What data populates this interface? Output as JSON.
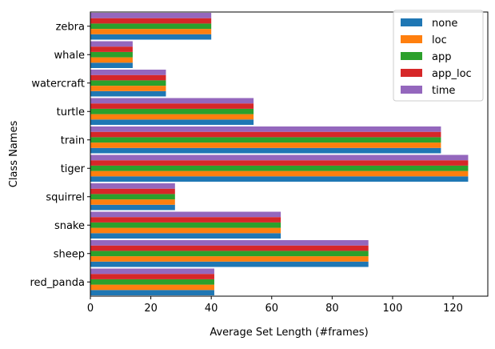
{
  "chart_data": {
    "type": "bar",
    "orientation": "horizontal",
    "categories": [
      "red_panda",
      "sheep",
      "snake",
      "squirrel",
      "tiger",
      "train",
      "turtle",
      "watercraft",
      "whale",
      "zebra"
    ],
    "series": [
      {
        "name": "none",
        "color": "#1f77b4",
        "values": [
          41,
          92,
          63,
          28,
          125,
          116,
          54,
          25,
          14,
          40
        ]
      },
      {
        "name": "loc",
        "color": "#ff7f0e",
        "values": [
          41,
          92,
          63,
          28,
          125,
          116,
          54,
          25,
          14,
          40
        ]
      },
      {
        "name": "app",
        "color": "#2ca02c",
        "values": [
          41,
          92,
          63,
          28,
          125,
          116,
          54,
          25,
          14,
          40
        ]
      },
      {
        "name": "app_loc",
        "color": "#d62728",
        "values": [
          41,
          92,
          63,
          28,
          125,
          116,
          54,
          25,
          14,
          40
        ]
      },
      {
        "name": "time",
        "color": "#9467bd",
        "values": [
          41,
          92,
          63,
          28,
          125,
          116,
          54,
          25,
          14,
          40
        ]
      }
    ],
    "xlabel": "Average Set Length (#frames)",
    "ylabel": "Class Names",
    "xlim": [
      0,
      131.5
    ],
    "xticks": [
      0,
      20,
      40,
      60,
      80,
      100,
      120
    ],
    "grid": false,
    "legend_position": "top-right"
  }
}
